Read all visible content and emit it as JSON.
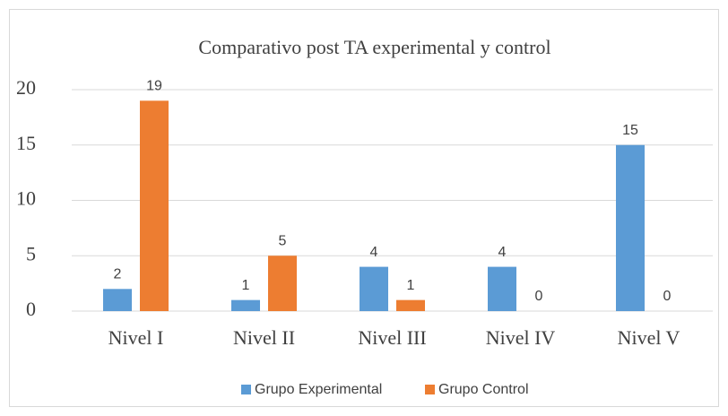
{
  "chart_data": {
    "type": "bar",
    "title": "Comparativo post TA experimental y control",
    "categories": [
      "Nivel I",
      "Nivel II",
      "Nivel III",
      "Nivel IV",
      "Nivel V"
    ],
    "series": [
      {
        "name": "Grupo Experimental",
        "color": "#5b9bd5",
        "values": [
          2,
          1,
          4,
          4,
          15
        ]
      },
      {
        "name": "Grupo Control",
        "color": "#ed7d31",
        "values": [
          19,
          5,
          1,
          0,
          0
        ]
      }
    ],
    "ylim": [
      0,
      20
    ],
    "yticks": [
      0,
      5,
      10,
      15,
      20
    ],
    "grid": true,
    "legend": "bottom"
  }
}
